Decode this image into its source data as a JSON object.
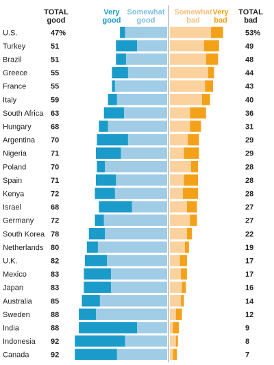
{
  "chart_data": {
    "type": "bar",
    "headers": {
      "total_good_1": "TOTAL",
      "total_good_2": "good",
      "very_good_1": "Very",
      "very_good_2": "good",
      "somewhat_good_1": "Somewhat",
      "somewhat_good_2": "good",
      "somewhat_bad_1": "Somewhat",
      "somewhat_bad_2": "bad",
      "very_bad_1": "Very",
      "very_bad_2": "bad",
      "total_bad_1": "TOTAL",
      "total_bad_2": "bad"
    },
    "categories": [
      "U.S.",
      "Turkey",
      "Brazil",
      "Greece",
      "France",
      "Italy",
      "South Africa",
      "Hungary",
      "Argentina",
      "Nigeria",
      "Poland",
      "Spain",
      "Kenya",
      "Israel",
      "Germany",
      "South Korea",
      "Netherlands",
      "U.K.",
      "Mexico",
      "Japan",
      "Australia",
      "Sweden",
      "India",
      "Indonesia",
      "Canada"
    ],
    "total_good_labels": [
      "47%",
      "51",
      "51",
      "55",
      "55",
      "59",
      "63",
      "68",
      "70",
      "71",
      "70",
      "71",
      "72",
      "68",
      "72",
      "78",
      "80",
      "82",
      "83",
      "83",
      "85",
      "88",
      "88",
      "92",
      "92"
    ],
    "total_bad_labels": [
      "53%",
      "49",
      "48",
      "44",
      "43",
      "40",
      "36",
      "31",
      "29",
      "29",
      "28",
      "28",
      "28",
      "27",
      "27",
      "22",
      "19",
      "17",
      "17",
      "16",
      "14",
      "12",
      "9",
      "8",
      "7"
    ],
    "series": [
      {
        "name": "Very good",
        "color": "#1a9bc9",
        "values": [
          5,
          21,
          10,
          16,
          3,
          9,
          20,
          9,
          31,
          25,
          8,
          20,
          20,
          33,
          9,
          16,
          11,
          22,
          27,
          27,
          18,
          17,
          58,
          50,
          42
        ]
      },
      {
        "name": "Somewhat good",
        "color": "#a0cce6",
        "values": [
          42,
          30,
          41,
          39,
          52,
          50,
          43,
          59,
          39,
          46,
          62,
          51,
          52,
          35,
          63,
          62,
          69,
          60,
          56,
          56,
          67,
          71,
          30,
          42,
          50
        ]
      },
      {
        "name": "Somewhat bad",
        "color": "#fbd29e",
        "values": [
          41,
          34,
          36,
          38,
          35,
          32,
          20,
          20,
          18,
          14,
          21,
          14,
          13,
          17,
          20,
          17,
          15,
          10,
          11,
          12,
          11,
          6,
          3,
          6,
          3
        ]
      },
      {
        "name": "Very bad",
        "color": "#f4a11a",
        "values": [
          12,
          15,
          12,
          6,
          8,
          8,
          16,
          11,
          11,
          15,
          7,
          14,
          15,
          10,
          7,
          5,
          4,
          7,
          6,
          4,
          3,
          6,
          6,
          2,
          4
        ]
      }
    ],
    "xlim": [
      -100,
      100
    ]
  }
}
